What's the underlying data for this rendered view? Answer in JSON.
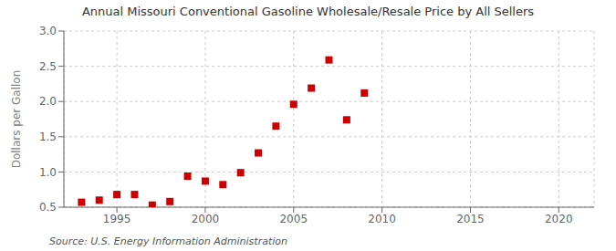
{
  "chart_data": {
    "type": "scatter",
    "title": "Annual Missouri Conventional Gasoline Wholesale/Resale Price by All Sellers",
    "ylabel": "Dollars per Gallon",
    "annotations": [
      "Source: U.S. Energy Information Administration"
    ],
    "x": [
      1993,
      1994,
      1995,
      1996,
      1997,
      1998,
      1999,
      2000,
      2001,
      2002,
      2003,
      2004,
      2005,
      2006,
      2007,
      2008,
      2009,
      2010
    ],
    "values": [
      0.57,
      0.6,
      0.68,
      0.68,
      0.53,
      0.58,
      0.94,
      0.87,
      0.82,
      0.99,
      1.27,
      1.65,
      1.96,
      2.19,
      2.59,
      1.74,
      2.12,
      null
    ],
    "color": "#cc0000",
    "marker": "square",
    "xlim": [
      1992,
      2022
    ],
    "xticks": [
      1995,
      2000,
      2005,
      2010,
      2015,
      2020
    ],
    "ylim": [
      0.5,
      3.0
    ],
    "yticks": [
      0.5,
      {
        "value": 1.0,
        "label": "1.0"
      },
      1.5,
      {
        "value": 2.0,
        "label": "2.0"
      },
      2.5,
      {
        "value": 3.0,
        "label": "3.0"
      }
    ],
    "grid": true
  }
}
